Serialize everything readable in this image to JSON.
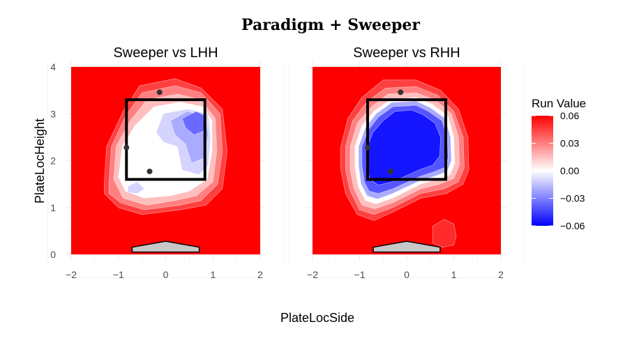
{
  "chart_data": {
    "type": "heatmap",
    "title": "Paradigm + Sweeper",
    "xlabel": "PlateLocSide",
    "ylabel": "PlateLocHeight",
    "xlim": [
      -2,
      2
    ],
    "ylim": [
      0,
      4
    ],
    "x_ticks": [
      -2,
      -1,
      0,
      1,
      2
    ],
    "y_ticks": [
      0,
      1,
      2,
      3,
      4
    ],
    "x_tick_labels": [
      "−2",
      "−1",
      "0",
      "1",
      "2"
    ],
    "y_tick_labels": [
      "0",
      "1",
      "2",
      "3",
      "4"
    ],
    "grid": true,
    "strike_zone": {
      "x": [
        -0.83,
        0.83
      ],
      "y": [
        1.6,
        3.3
      ]
    },
    "home_plate": {
      "x": [
        -0.71,
        0.71
      ],
      "y": [
        0.05,
        0.28
      ]
    },
    "legend": {
      "title": "Run Value",
      "position": "right",
      "range": [
        -0.06,
        0.06
      ],
      "ticks": [
        0.06,
        0.03,
        0.0,
        -0.03,
        -0.06
      ],
      "tick_labels": [
        "0.06",
        "0.03",
        "0.00",
        "−0.03",
        "−0.06"
      ],
      "colors": {
        "low": "#0000ff",
        "mid": "#ffffff",
        "high": "#ff0000"
      }
    },
    "panels": [
      {
        "name": "Sweeper vs LHH",
        "points": [
          [
            -0.13,
            3.46
          ],
          [
            -0.83,
            2.28
          ],
          [
            -0.34,
            1.77
          ]
        ],
        "levels": [
          {
            "value": 0.045,
            "polygon": [
              [
                -1.3,
                1.5
              ],
              [
                -1.25,
                2.3
              ],
              [
                -0.9,
                3.05
              ],
              [
                -0.55,
                3.6
              ],
              [
                0.2,
                3.75
              ],
              [
                0.75,
                3.55
              ],
              [
                1.2,
                3.1
              ],
              [
                1.3,
                2.2
              ],
              [
                1.2,
                1.4
              ],
              [
                0.85,
                1.05
              ],
              [
                0.3,
                0.95
              ],
              [
                -0.5,
                0.85
              ],
              [
                -1.0,
                1.0
              ],
              [
                -1.3,
                1.3
              ]
            ]
          },
          {
            "value": 0.03,
            "polygon": [
              [
                -1.2,
                1.55
              ],
              [
                -1.15,
                2.3
              ],
              [
                -0.85,
                2.95
              ],
              [
                -0.5,
                3.45
              ],
              [
                0.2,
                3.6
              ],
              [
                0.75,
                3.45
              ],
              [
                1.15,
                3.0
              ],
              [
                1.2,
                2.2
              ],
              [
                1.1,
                1.5
              ],
              [
                0.75,
                1.15
              ],
              [
                0.3,
                1.05
              ],
              [
                -0.45,
                0.95
              ],
              [
                -0.95,
                1.1
              ],
              [
                -1.2,
                1.3
              ]
            ]
          },
          {
            "value": 0.015,
            "polygon": [
              [
                -1.1,
                1.6
              ],
              [
                -1.05,
                2.3
              ],
              [
                -0.75,
                2.85
              ],
              [
                -0.4,
                3.3
              ],
              [
                0.25,
                3.42
              ],
              [
                0.75,
                3.3
              ],
              [
                1.05,
                2.9
              ],
              [
                1.08,
                2.2
              ],
              [
                1.0,
                1.55
              ],
              [
                0.65,
                1.25
              ],
              [
                0.2,
                1.15
              ],
              [
                -0.4,
                1.05
              ],
              [
                -0.9,
                1.2
              ]
            ]
          },
          {
            "value": 0.0,
            "polygon": [
              [
                -1.0,
                1.65
              ],
              [
                -0.92,
                2.3
              ],
              [
                -0.65,
                2.75
              ],
              [
                -0.25,
                3.15
              ],
              [
                0.3,
                3.25
              ],
              [
                0.8,
                3.15
              ],
              [
                0.98,
                2.85
              ],
              [
                0.98,
                2.2
              ],
              [
                0.88,
                1.6
              ],
              [
                0.5,
                1.35
              ],
              [
                0.1,
                1.25
              ],
              [
                -0.45,
                1.2
              ],
              [
                -0.85,
                1.35
              ]
            ]
          },
          {
            "value": -0.01,
            "polygon": [
              [
                -0.2,
                2.6
              ],
              [
                -0.05,
                3.0
              ],
              [
                0.45,
                3.1
              ],
              [
                0.9,
                3.0
              ],
              [
                0.95,
                2.5
              ],
              [
                0.9,
                1.9
              ],
              [
                0.7,
                1.7
              ],
              [
                0.35,
                1.8
              ],
              [
                0.25,
                2.3
              ],
              [
                -0.05,
                2.4
              ]
            ]
          },
          {
            "value": -0.02,
            "polygon": [
              [
                0.1,
                2.85
              ],
              [
                0.45,
                3.05
              ],
              [
                0.85,
                2.95
              ],
              [
                0.9,
                2.55
              ],
              [
                0.8,
                2.05
              ],
              [
                0.55,
                1.95
              ],
              [
                0.42,
                2.35
              ],
              [
                0.2,
                2.55
              ]
            ]
          },
          {
            "value": -0.035,
            "polygon": [
              [
                0.35,
                2.9
              ],
              [
                0.65,
                3.05
              ],
              [
                0.85,
                2.95
              ],
              [
                0.85,
                2.65
              ],
              [
                0.6,
                2.55
              ],
              [
                0.42,
                2.7
              ]
            ]
          },
          {
            "value": -0.01,
            "polygon": [
              [
                -0.8,
                1.45
              ],
              [
                -0.6,
                1.55
              ],
              [
                -0.45,
                1.4
              ],
              [
                -0.6,
                1.3
              ],
              [
                -0.8,
                1.32
              ]
            ]
          }
        ]
      },
      {
        "name": "Sweeper vs RHH",
        "points": [
          [
            -0.13,
            3.46
          ],
          [
            -0.83,
            2.28
          ],
          [
            -0.34,
            1.77
          ]
        ],
        "levels": [
          {
            "value": 0.05,
            "polygon": [
              [
                0.8,
                0.75
              ],
              [
                1.0,
                0.65
              ],
              [
                1.05,
                0.4
              ],
              [
                1.0,
                0.2
              ],
              [
                0.75,
                0.15
              ],
              [
                0.55,
                0.25
              ],
              [
                0.55,
                0.6
              ]
            ]
          },
          {
            "value": 0.045,
            "polygon": [
              [
                -1.4,
                2.3
              ],
              [
                -1.25,
                2.9
              ],
              [
                -0.95,
                3.35
              ],
              [
                -0.5,
                3.72
              ],
              [
                0.2,
                3.72
              ],
              [
                0.72,
                3.5
              ],
              [
                1.1,
                3.1
              ],
              [
                1.3,
                2.5
              ],
              [
                1.32,
                1.8
              ],
              [
                1.2,
                1.5
              ],
              [
                0.85,
                1.3
              ],
              [
                0.3,
                1.2
              ],
              [
                -0.3,
                0.9
              ],
              [
                -0.7,
                0.72
              ],
              [
                -1.05,
                0.85
              ],
              [
                -1.3,
                1.3
              ],
              [
                -1.4,
                1.8
              ]
            ]
          },
          {
            "value": 0.03,
            "polygon": [
              [
                -1.3,
                2.3
              ],
              [
                -1.15,
                2.85
              ],
              [
                -0.85,
                3.25
              ],
              [
                -0.45,
                3.55
              ],
              [
                0.2,
                3.58
              ],
              [
                0.65,
                3.4
              ],
              [
                1.0,
                3.05
              ],
              [
                1.2,
                2.5
              ],
              [
                1.22,
                1.85
              ],
              [
                1.1,
                1.55
              ],
              [
                0.8,
                1.4
              ],
              [
                0.3,
                1.3
              ],
              [
                -0.3,
                1.0
              ],
              [
                -0.7,
                0.85
              ],
              [
                -1.0,
                0.95
              ],
              [
                -1.2,
                1.35
              ],
              [
                -1.3,
                1.8
              ]
            ]
          },
          {
            "value": 0.015,
            "polygon": [
              [
                -1.2,
                2.3
              ],
              [
                -1.05,
                2.8
              ],
              [
                -0.75,
                3.15
              ],
              [
                -0.4,
                3.42
              ],
              [
                0.2,
                3.45
              ],
              [
                0.6,
                3.3
              ],
              [
                0.95,
                3.0
              ],
              [
                1.1,
                2.5
              ],
              [
                1.12,
                1.9
              ],
              [
                1.0,
                1.62
              ],
              [
                0.7,
                1.5
              ],
              [
                0.3,
                1.4
              ],
              [
                -0.3,
                1.1
              ],
              [
                -0.68,
                0.97
              ],
              [
                -0.95,
                1.05
              ],
              [
                -1.12,
                1.4
              ],
              [
                -1.2,
                1.8
              ]
            ]
          },
          {
            "value": 0.0,
            "polygon": [
              [
                -1.1,
                2.3
              ],
              [
                -0.95,
                2.75
              ],
              [
                -0.7,
                3.05
              ],
              [
                -0.35,
                3.3
              ],
              [
                0.2,
                3.35
              ],
              [
                0.55,
                3.2
              ],
              [
                0.88,
                2.95
              ],
              [
                1.0,
                2.5
              ],
              [
                1.02,
                1.95
              ],
              [
                0.92,
                1.7
              ],
              [
                0.65,
                1.6
              ],
              [
                0.3,
                1.5
              ],
              [
                -0.3,
                1.2
              ],
              [
                -0.65,
                1.08
              ],
              [
                -0.88,
                1.15
              ],
              [
                -1.03,
                1.45
              ],
              [
                -1.1,
                1.85
              ]
            ]
          },
          {
            "value": -0.02,
            "polygon": [
              [
                -1.02,
                2.3
              ],
              [
                -0.88,
                2.7
              ],
              [
                -0.65,
                3.0
              ],
              [
                -0.32,
                3.24
              ],
              [
                0.2,
                3.27
              ],
              [
                0.5,
                3.13
              ],
              [
                0.82,
                2.9
              ],
              [
                0.93,
                2.5
              ],
              [
                0.95,
                2.0
              ],
              [
                0.86,
                1.77
              ],
              [
                0.6,
                1.67
              ],
              [
                0.3,
                1.58
              ],
              [
                -0.3,
                1.3
              ],
              [
                -0.62,
                1.18
              ],
              [
                -0.84,
                1.25
              ],
              [
                -0.97,
                1.5
              ],
              [
                -1.02,
                1.9
              ]
            ]
          },
          {
            "value": -0.04,
            "polygon": [
              [
                -0.95,
                2.3
              ],
              [
                -0.82,
                2.65
              ],
              [
                -0.6,
                2.93
              ],
              [
                -0.3,
                3.15
              ],
              [
                0.2,
                3.18
              ],
              [
                0.45,
                3.06
              ],
              [
                0.75,
                2.85
              ],
              [
                0.86,
                2.5
              ],
              [
                0.88,
                2.05
              ],
              [
                0.8,
                1.85
              ],
              [
                0.55,
                1.75
              ],
              [
                0.3,
                1.67
              ],
              [
                -0.3,
                1.4
              ],
              [
                -0.6,
                1.3
              ],
              [
                -0.8,
                1.35
              ],
              [
                -0.9,
                1.55
              ],
              [
                -0.95,
                1.9
              ]
            ]
          },
          {
            "value": -0.055,
            "polygon": [
              [
                -0.85,
                2.25
              ],
              [
                -0.72,
                2.6
              ],
              [
                -0.5,
                2.85
              ],
              [
                -0.25,
                3.05
              ],
              [
                0.1,
                3.08
              ],
              [
                0.35,
                2.98
              ],
              [
                0.6,
                2.8
              ],
              [
                0.72,
                2.5
              ],
              [
                0.7,
                2.1
              ],
              [
                0.55,
                1.9
              ],
              [
                0.3,
                1.82
              ],
              [
                -0.3,
                1.55
              ],
              [
                -0.6,
                1.48
              ],
              [
                -0.78,
                1.6
              ],
              [
                -0.85,
                1.9
              ]
            ]
          }
        ]
      }
    ]
  }
}
